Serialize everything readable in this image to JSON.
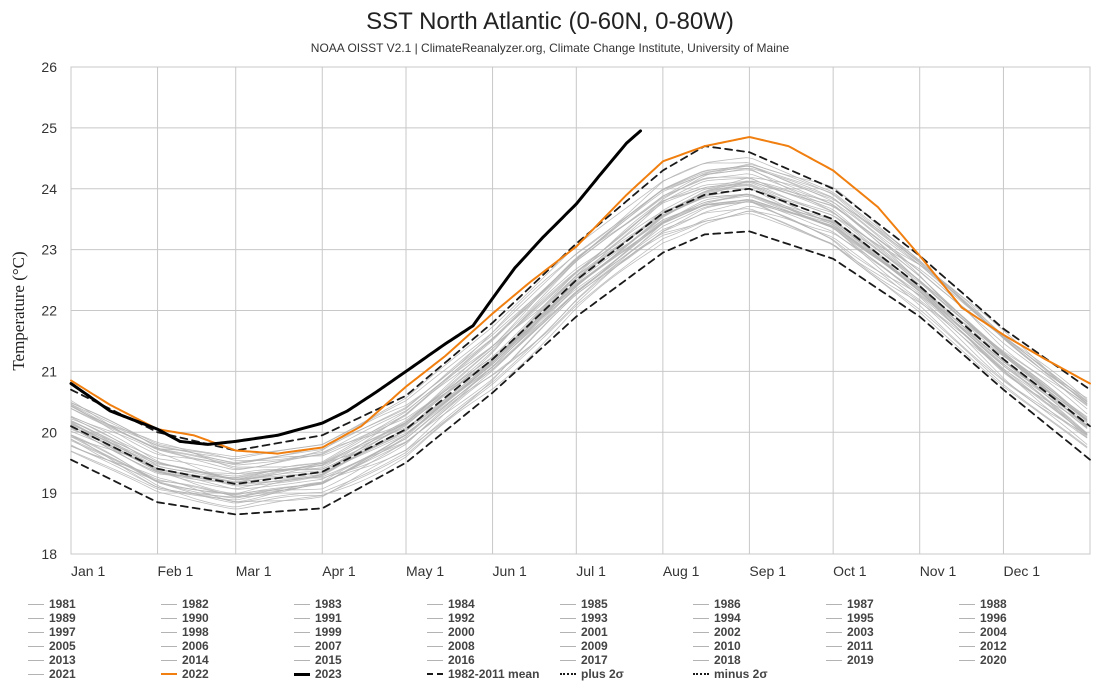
{
  "header": {
    "title": "SST North Atlantic (0-60N, 0-80W)",
    "subtitle": "NOAA OISST V2.1 | ClimateReanalyzer.org, Climate Change Institute, University of Maine"
  },
  "colors": {
    "background_year": "#b3b3b3",
    "year_2022": "#f07f0f",
    "year_2023": "#000000",
    "mean": "#1a1a1a",
    "grid": "#c8c8c8"
  },
  "legend": {
    "items": [
      "1981",
      "1982",
      "1983",
      "1984",
      "1985",
      "1986",
      "1987",
      "1988",
      "1989",
      "1990",
      "1991",
      "1992",
      "1993",
      "1994",
      "1995",
      "1996",
      "1997",
      "1998",
      "1999",
      "2000",
      "2001",
      "2002",
      "2003",
      "2004",
      "2005",
      "2006",
      "2007",
      "2008",
      "2009",
      "2010",
      "2011",
      "2012",
      "2013",
      "2014",
      "2015",
      "2016",
      "2017",
      "2018",
      "2019",
      "2020",
      "2021",
      "2022",
      "2023",
      "1982-2011 mean",
      "plus 2σ",
      "minus 2σ"
    ]
  },
  "chart_data": {
    "type": "line",
    "title": "SST North Atlantic (0-60N, 0-80W)",
    "subtitle": "NOAA OISST V2.1 | ClimateReanalyzer.org, Climate Change Institute, University of Maine",
    "ylabel": "Temperature (°C)",
    "xlabel": "",
    "ylim": [
      18,
      26
    ],
    "xlim": [
      1,
      366
    ],
    "yticks": [
      18,
      19,
      20,
      21,
      22,
      23,
      24,
      25,
      26
    ],
    "x_unit": "day of year",
    "xtick_labels": [
      {
        "day": 1,
        "label": "Jan 1"
      },
      {
        "day": 32,
        "label": "Feb 1"
      },
      {
        "day": 60,
        "label": "Mar 1"
      },
      {
        "day": 91,
        "label": "Apr 1"
      },
      {
        "day": 121,
        "label": "May 1"
      },
      {
        "day": 152,
        "label": "Jun 1"
      },
      {
        "day": 182,
        "label": "Jul 1"
      },
      {
        "day": 213,
        "label": "Aug 1"
      },
      {
        "day": 244,
        "label": "Sep 1"
      },
      {
        "day": 274,
        "label": "Oct 1"
      },
      {
        "day": 305,
        "label": "Nov 1"
      },
      {
        "day": 335,
        "label": "Dec 1"
      }
    ],
    "grid": true,
    "legend_position": "bottom",
    "series": [
      {
        "name": "1982-2011 mean",
        "style": "dashed",
        "x": [
          1,
          32,
          60,
          91,
          121,
          152,
          182,
          213,
          228,
          244,
          274,
          305,
          335,
          366
        ],
        "y": [
          20.1,
          19.4,
          19.15,
          19.35,
          20.05,
          21.2,
          22.5,
          23.6,
          23.9,
          24.0,
          23.5,
          22.4,
          21.2,
          20.1
        ]
      },
      {
        "name": "plus 2σ",
        "style": "dashed",
        "x": [
          1,
          32,
          60,
          91,
          121,
          152,
          182,
          213,
          228,
          244,
          274,
          305,
          335,
          366
        ],
        "y": [
          20.7,
          20.0,
          19.7,
          19.95,
          20.6,
          21.8,
          23.1,
          24.3,
          24.7,
          24.6,
          24.0,
          22.9,
          21.7,
          20.7
        ]
      },
      {
        "name": "minus 2σ",
        "style": "dashed",
        "x": [
          1,
          32,
          60,
          91,
          121,
          152,
          182,
          213,
          228,
          244,
          274,
          305,
          335,
          366
        ],
        "y": [
          19.55,
          18.85,
          18.65,
          18.75,
          19.5,
          20.65,
          21.9,
          22.95,
          23.25,
          23.3,
          22.85,
          21.9,
          20.7,
          19.55
        ]
      },
      {
        "name": "2022",
        "style": "solid",
        "x": [
          1,
          15,
          32,
          45,
          60,
          75,
          91,
          105,
          121,
          135,
          152,
          165,
          182,
          200,
          213,
          228,
          244,
          258,
          274,
          290,
          305,
          320,
          335,
          350,
          366
        ],
        "y": [
          20.85,
          20.45,
          20.05,
          19.95,
          19.7,
          19.65,
          19.75,
          20.1,
          20.75,
          21.25,
          21.95,
          22.45,
          23.05,
          23.9,
          24.45,
          24.7,
          24.85,
          24.7,
          24.3,
          23.7,
          22.9,
          22.05,
          21.6,
          21.2,
          20.8
        ]
      },
      {
        "name": "2023",
        "style": "solid",
        "x": [
          1,
          15,
          32,
          40,
          50,
          60,
          75,
          91,
          100,
          110,
          121,
          135,
          145,
          152,
          160,
          170,
          182,
          190,
          200,
          205
        ],
        "y": [
          20.8,
          20.35,
          20.05,
          19.85,
          19.8,
          19.85,
          19.95,
          20.15,
          20.35,
          20.65,
          21.0,
          21.45,
          21.75,
          22.2,
          22.7,
          23.2,
          23.75,
          24.2,
          24.75,
          24.95
        ]
      }
    ]
  }
}
